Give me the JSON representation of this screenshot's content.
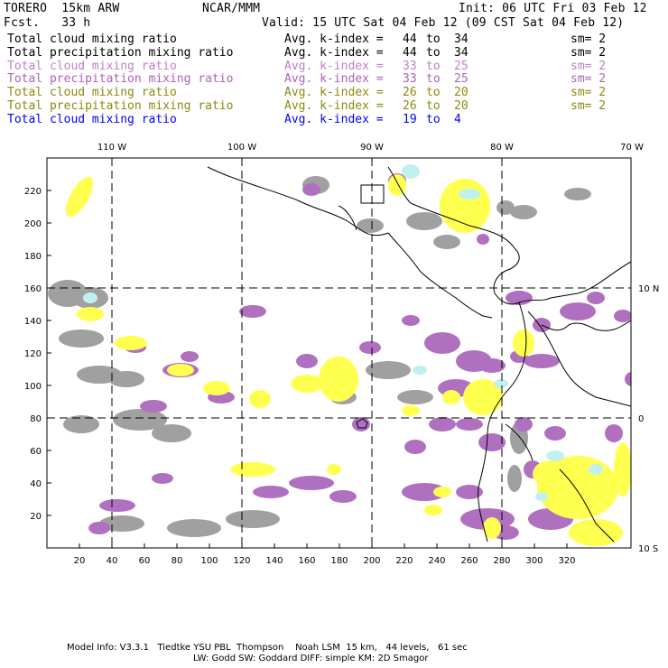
{
  "header": {
    "title": "TORERO  15km ARW",
    "org": "NCAR/MMM",
    "init": "Init: 06 UTC Fri 03 Feb 12",
    "fcst": "Fcst.   33 h",
    "valid": "Valid: 15 UTC Sat 04 Feb 12 (09 CST Sat 04 Feb 12)"
  },
  "legend": [
    {
      "name": "Total cloud mixing ratio",
      "kindex_label": "Avg. k-index =",
      "from": "44",
      "to_word": "to",
      "to": "34",
      "sm": "sm= 2",
      "color": "#000000"
    },
    {
      "name": "Total precipitation mixing ratio",
      "kindex_label": "Avg. k-index =",
      "from": "44",
      "to_word": "to",
      "to": "34",
      "sm": "sm= 2",
      "color": "#000000"
    },
    {
      "name": "Total cloud mixing ratio",
      "kindex_label": "Avg. k-index =",
      "from": "33",
      "to_word": "to",
      "to": "25",
      "sm": "sm= 2",
      "color": "#c080c8"
    },
    {
      "name": "Total precipitation mixing ratio",
      "kindex_label": "Avg. k-index =",
      "from": "33",
      "to_word": "to",
      "to": "25",
      "sm": "sm= 2",
      "color": "#b060b8"
    },
    {
      "name": "Total cloud mixing ratio",
      "kindex_label": "Avg. k-index =",
      "from": "26",
      "to_word": "to",
      "to": "20",
      "sm": "sm= 2",
      "color": "#8a8a10"
    },
    {
      "name": "Total precipitation mixing ratio",
      "kindex_label": "Avg. k-index =",
      "from": "26",
      "to_word": "to",
      "to": "20",
      "sm": "sm= 2",
      "color": "#8a8a10"
    },
    {
      "name": "Total cloud mixing ratio",
      "kindex_label": "Avg. k-index =",
      "from": "19",
      "to_word": "to",
      "to": "4",
      "sm": "",
      "color": "#0000ff"
    }
  ],
  "map": {
    "lon_labels": [
      "110 W",
      "100 W",
      "90 W",
      "80 W",
      "70 W"
    ],
    "lat_labels": [
      "10 N",
      "0",
      "10 S"
    ],
    "grid_x_labels": [
      "20",
      "40",
      "60",
      "80",
      "100",
      "120",
      "140",
      "160",
      "180",
      "200",
      "220",
      "240",
      "260",
      "280",
      "300",
      "320"
    ],
    "grid_y_labels": [
      "20",
      "40",
      "60",
      "80",
      "100",
      "120",
      "140",
      "160",
      "180",
      "200",
      "220"
    ],
    "colors": {
      "gray": "#a0a0a0",
      "purple": "#b070c0",
      "yellow": "#ffff50",
      "cyan": "#c0f0f0",
      "coast": "#000000",
      "grid": "#000000"
    }
  },
  "footer": {
    "line1": "Model Info: V3.3.1   Tiedtke YSU PBL  Thompson    Noah LSM  15 km,   44 levels,   61 sec",
    "line2": "LW: Godd SW: Goddard DIFF: simple KM: 2D Smagor"
  }
}
